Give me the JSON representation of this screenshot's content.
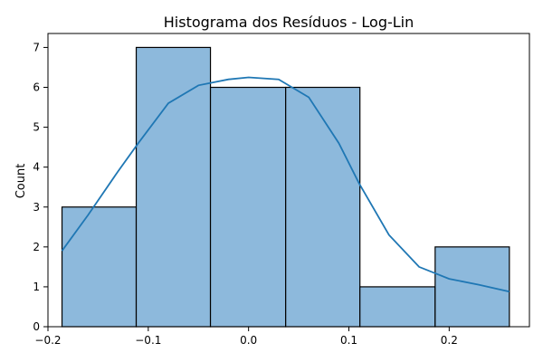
{
  "chart_data": {
    "type": "bar",
    "subtype": "histogram-with-kde",
    "title": "Histograma dos Resíduos - Log-Lin",
    "xlabel": "",
    "ylabel": "Count",
    "xlim": [
      -0.2,
      0.28
    ],
    "ylim": [
      0,
      7.35
    ],
    "xticks": [
      -0.2,
      -0.1,
      0.0,
      0.1,
      0.2
    ],
    "xtick_labels": [
      "−0.2",
      "−0.1",
      "0.0",
      "0.1",
      "0.2"
    ],
    "yticks": [
      0,
      1,
      2,
      3,
      4,
      5,
      6,
      7
    ],
    "ytick_labels": [
      "0",
      "1",
      "2",
      "3",
      "4",
      "5",
      "6",
      "7"
    ],
    "bins": [
      {
        "x0": -0.186,
        "x1": -0.112,
        "count": 3
      },
      {
        "x0": -0.112,
        "x1": -0.038,
        "count": 7
      },
      {
        "x0": -0.038,
        "x1": 0.037,
        "count": 6
      },
      {
        "x0": 0.037,
        "x1": 0.111,
        "count": 6
      },
      {
        "x0": 0.111,
        "x1": 0.186,
        "count": 1
      },
      {
        "x0": 0.186,
        "x1": 0.26,
        "count": 2
      }
    ],
    "kde": {
      "x": [
        -0.186,
        -0.16,
        -0.13,
        -0.11,
        -0.08,
        -0.05,
        -0.02,
        0.0,
        0.03,
        0.06,
        0.09,
        0.11,
        0.14,
        0.17,
        0.2,
        0.23,
        0.26
      ],
      "y": [
        1.9,
        2.8,
        3.9,
        4.6,
        5.6,
        6.05,
        6.2,
        6.25,
        6.2,
        5.75,
        4.6,
        3.6,
        2.3,
        1.5,
        1.2,
        1.05,
        0.88
      ]
    },
    "grid": false,
    "legend": "none",
    "colors": {
      "bar_fill": "#8db9dc",
      "bar_edge": "#000000",
      "kde_line": "#1f77b4"
    }
  }
}
